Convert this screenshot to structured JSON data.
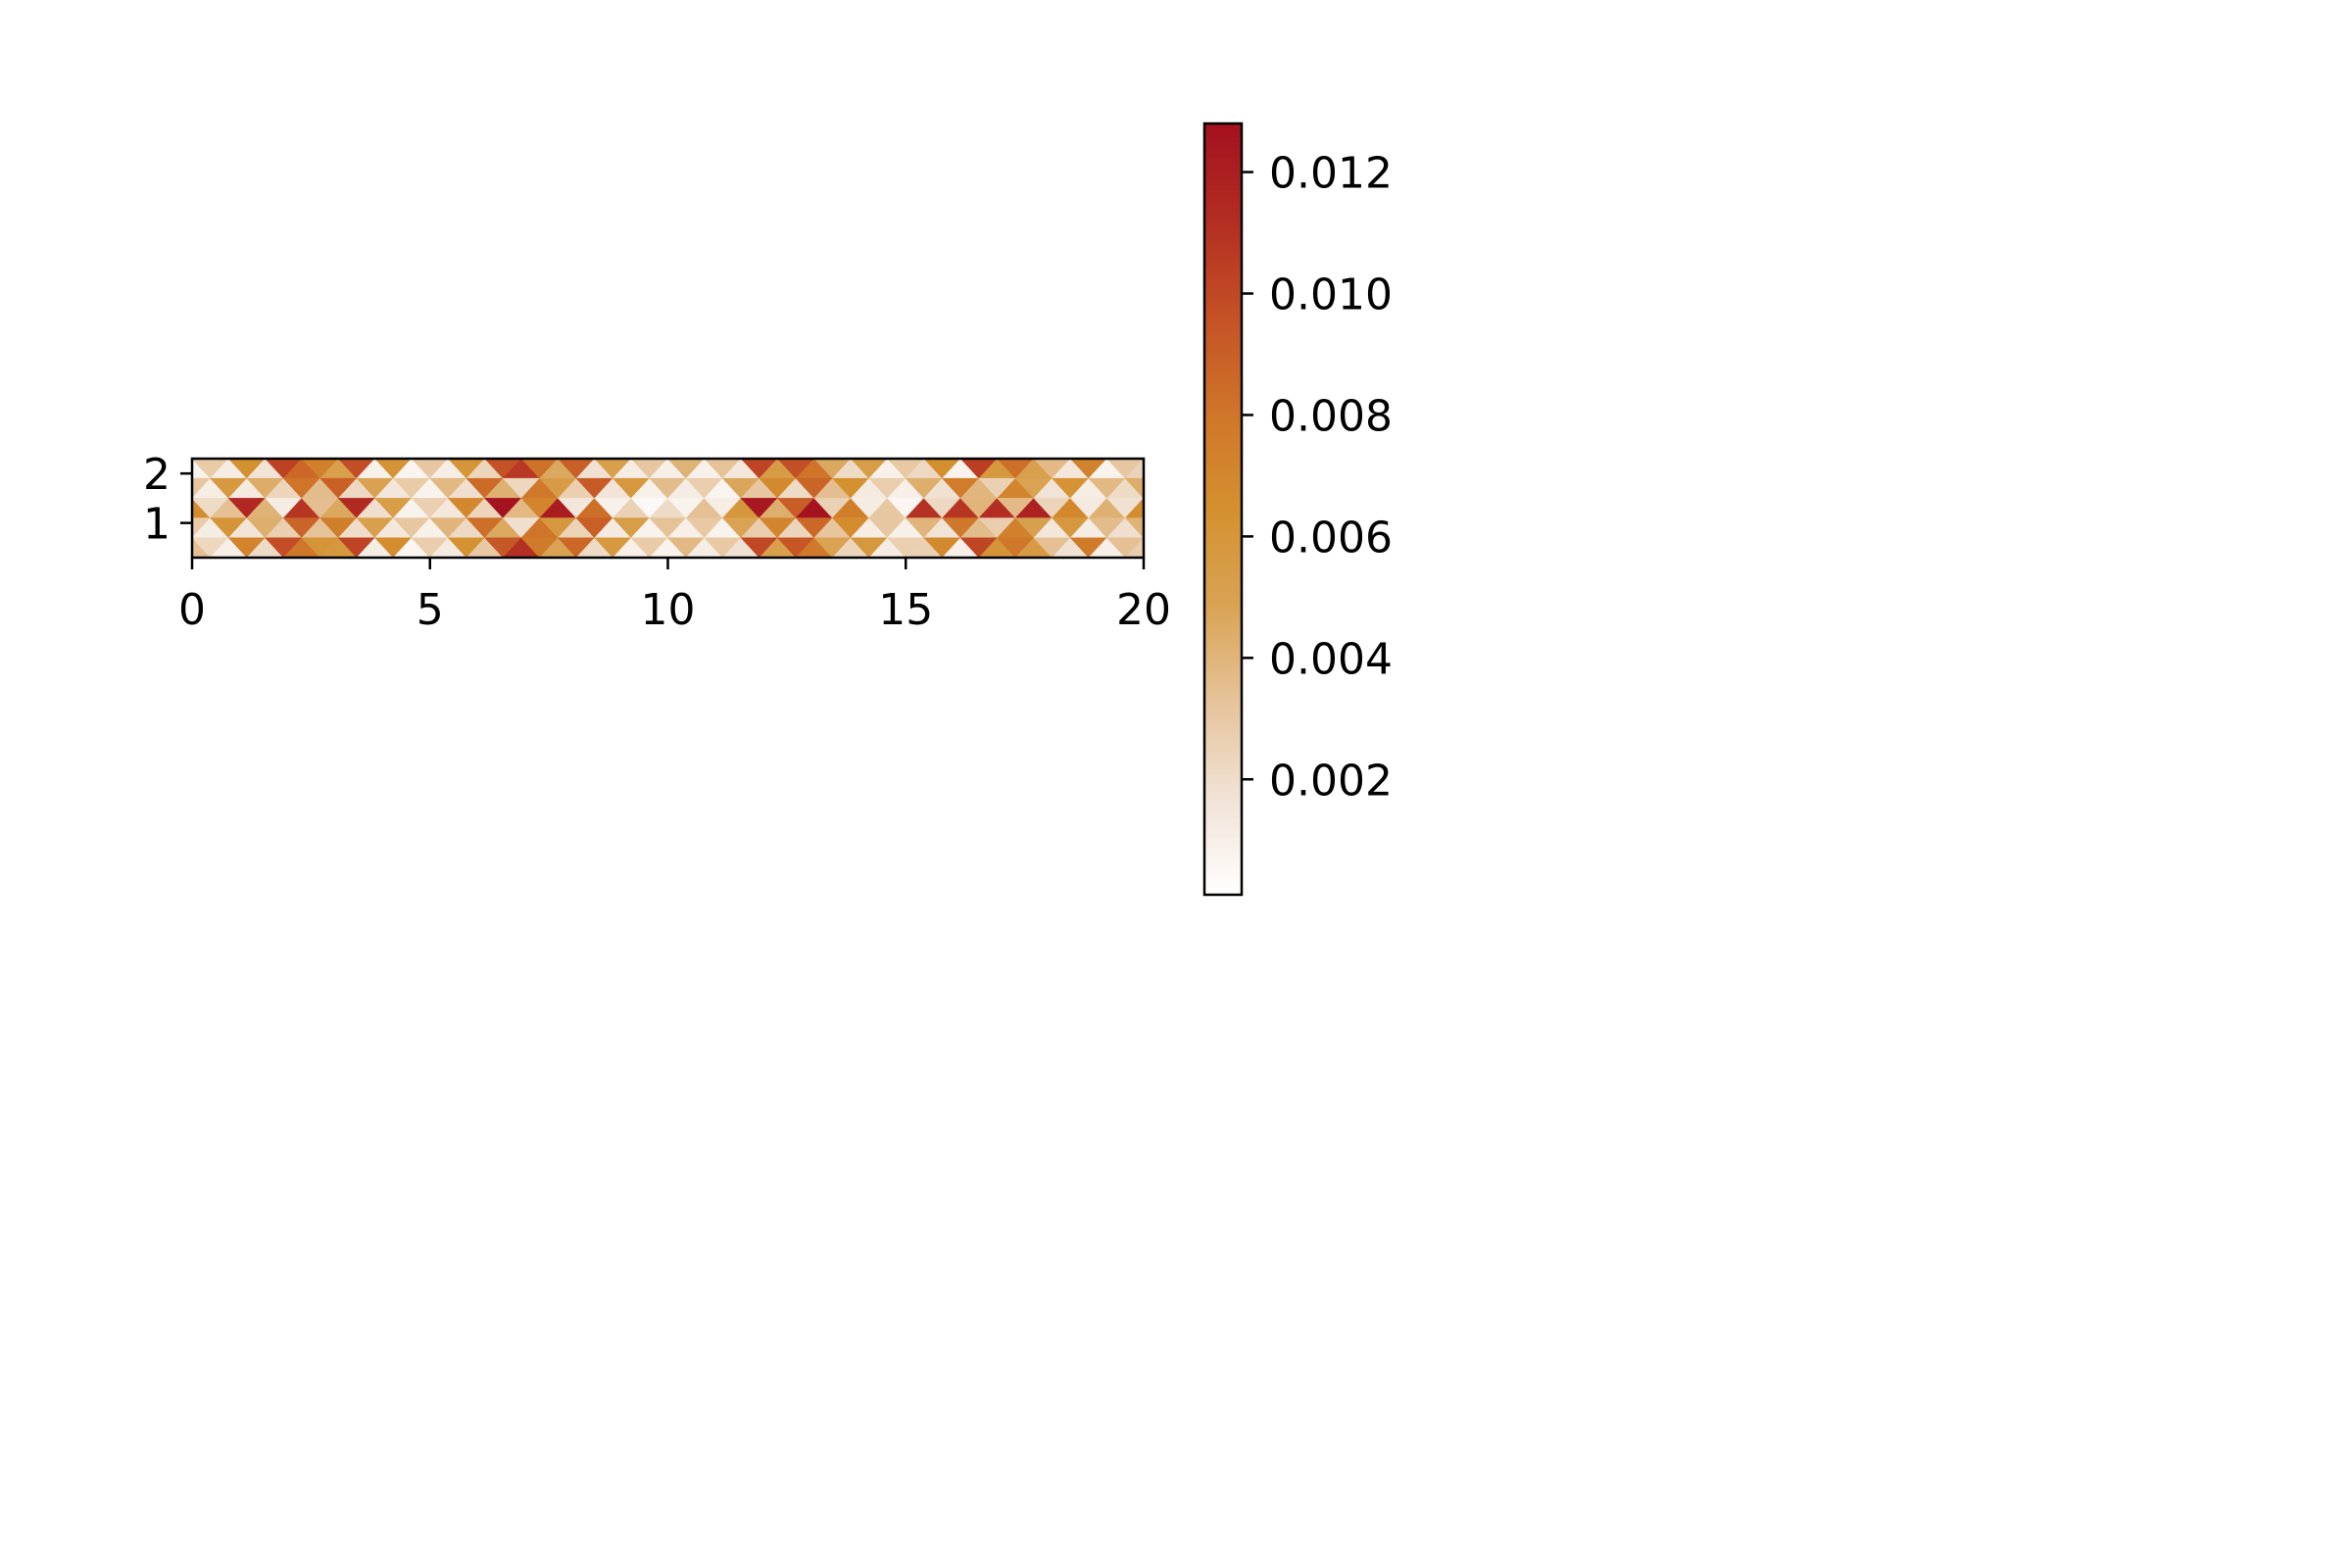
{
  "chart_data": {
    "type": "heatmap",
    "mesh": "triangular",
    "title": "",
    "xlabel": "",
    "ylabel": "",
    "xlim": [
      0,
      20
    ],
    "ylim": [
      0.3,
      2.3
    ],
    "x_ticks": [
      "0",
      "5",
      "10",
      "15",
      "20"
    ],
    "x_tick_values": [
      0,
      5,
      10,
      15,
      20
    ],
    "y_ticks": [
      "1",
      "2"
    ],
    "y_tick_values": [
      1,
      2
    ],
    "colorbar": {
      "min": 0.0001,
      "max": 0.0128,
      "ticks": [
        "0.002",
        "0.004",
        "0.006",
        "0.008",
        "0.010",
        "0.012"
      ],
      "tick_values": [
        0.002,
        0.004,
        0.006,
        0.008,
        0.01,
        0.012
      ],
      "colors": [
        "#ffffff",
        "#f1e3d6",
        "#e6c39a",
        "#d9a354",
        "#d4902f",
        "#cf7529",
        "#c45126",
        "#b32d22",
        "#a3111f"
      ]
    },
    "values": [
      [
        0.0008,
        0.0029,
        0.0012,
        0.0064,
        0.0017,
        0.0103,
        0.0086,
        0.0074,
        0.0052,
        0.0098,
        0.0009,
        0.0062,
        0.0007,
        0.0031,
        0.0011,
        0.006,
        0.0024,
        0.0096,
        0.0107,
        0.0082,
        0.0046,
        0.009,
        0.0018,
        0.0052,
        0.0012,
        0.0031,
        0.001,
        0.0041,
        0.0009,
        0.0033,
        0.0014,
        0.0102,
        0.0055,
        0.0097,
        0.0081,
        0.0046,
        0.0021,
        0.0054,
        0.0009,
        0.003,
        0.0022,
        0.0065,
        0.0008,
        0.0105,
        0.0058,
        0.0083,
        0.0052,
        0.0037,
        0.0015,
        0.0073,
        0.0008,
        0.0031,
        0.0025
      ],
      [
        0.0032,
        0.0011,
        0.0057,
        0.0013,
        0.0044,
        0.0024,
        0.0081,
        0.0036,
        0.0089,
        0.0022,
        0.005,
        0.0015,
        0.0029,
        0.0008,
        0.0038,
        0.0019,
        0.0085,
        0.0042,
        0.0023,
        0.0078,
        0.0055,
        0.0027,
        0.0092,
        0.0016,
        0.0058,
        0.0009,
        0.0036,
        0.0012,
        0.0028,
        0.0007,
        0.0047,
        0.0031,
        0.0068,
        0.0021,
        0.0088,
        0.0035,
        0.0064,
        0.0013,
        0.0028,
        0.001,
        0.0043,
        0.0018,
        0.0076,
        0.0039,
        0.0026,
        0.0071,
        0.0049,
        0.0017,
        0.0062,
        0.0011,
        0.0038,
        0.0021,
        0.0044
      ],
      [
        0.0066,
        0.0021,
        0.0034,
        0.0115,
        0.0041,
        0.0012,
        0.0108,
        0.0035,
        0.0046,
        0.0114,
        0.0019,
        0.0054,
        0.0008,
        0.0027,
        0.0014,
        0.0069,
        0.0024,
        0.0127,
        0.0038,
        0.0071,
        0.0122,
        0.0015,
        0.0083,
        0.0009,
        0.0026,
        0.0005,
        0.0021,
        0.0008,
        0.0034,
        0.0011,
        0.0059,
        0.0124,
        0.0043,
        0.0091,
        0.0127,
        0.0026,
        0.0075,
        0.0012,
        0.0031,
        0.0006,
        0.011,
        0.0022,
        0.0108,
        0.004,
        0.0112,
        0.0037,
        0.0119,
        0.0024,
        0.007,
        0.0013,
        0.0042,
        0.0018,
        0.0067
      ],
      [
        0.0029,
        0.0012,
        0.0061,
        0.0016,
        0.0043,
        0.0027,
        0.0088,
        0.0033,
        0.0075,
        0.002,
        0.0052,
        0.0014,
        0.0031,
        0.0009,
        0.004,
        0.0022,
        0.0083,
        0.0046,
        0.0019,
        0.0081,
        0.0058,
        0.0025,
        0.009,
        0.0013,
        0.0054,
        0.0008,
        0.0033,
        0.001,
        0.003,
        0.0008,
        0.0049,
        0.0028,
        0.0071,
        0.0024,
        0.0086,
        0.0032,
        0.0066,
        0.0011,
        0.0031,
        0.0009,
        0.004,
        0.0017,
        0.0079,
        0.0036,
        0.0028,
        0.0074,
        0.0051,
        0.0015,
        0.0058,
        0.0012,
        0.0036,
        0.0019,
        0.0041
      ],
      [
        0.0034,
        0.0023,
        0.001,
        0.0072,
        0.0021,
        0.0098,
        0.0079,
        0.0061,
        0.0058,
        0.0102,
        0.0011,
        0.0066,
        0.0006,
        0.0028,
        0.0013,
        0.0063,
        0.003,
        0.0093,
        0.0111,
        0.0077,
        0.0049,
        0.0086,
        0.0021,
        0.0057,
        0.001,
        0.0029,
        0.0008,
        0.0038,
        0.0011,
        0.003,
        0.0018,
        0.01,
        0.0052,
        0.0094,
        0.0078,
        0.0049,
        0.0024,
        0.0058,
        0.0012,
        0.0027,
        0.0026,
        0.0068,
        0.001,
        0.0101,
        0.0061,
        0.0079,
        0.0055,
        0.0034,
        0.0018,
        0.0077,
        0.001,
        0.0034,
        0.0028
      ]
    ]
  }
}
